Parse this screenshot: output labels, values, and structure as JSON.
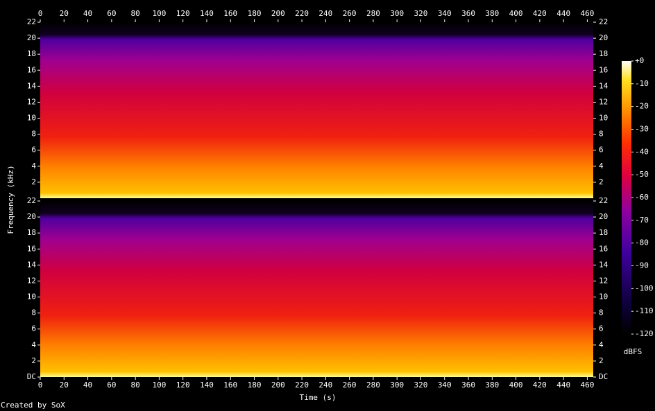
{
  "chart_data": {
    "type": "spectrogram",
    "x_label": "Time (s)",
    "y_label": "Frequency (kHz)",
    "xlim": [
      0,
      465
    ],
    "xticks": [
      0,
      20,
      40,
      60,
      80,
      100,
      120,
      140,
      160,
      180,
      200,
      220,
      240,
      260,
      280,
      300,
      320,
      340,
      360,
      380,
      400,
      420,
      440,
      460
    ],
    "channels": [
      {
        "ylim": [
          0,
          22
        ],
        "yticks": [
          2,
          4,
          6,
          8,
          10,
          12,
          14,
          16,
          18,
          20,
          22
        ]
      },
      {
        "ylim": [
          0,
          22
        ],
        "yticks": [
          {
            "value": 0,
            "label": "DC"
          },
          2,
          4,
          6,
          8,
          10,
          12,
          14,
          16,
          18,
          20,
          22
        ]
      }
    ],
    "colorbar": {
      "label": "dBFS",
      "lim": [
        -120,
        0
      ],
      "ticks": [
        {
          "value": 0,
          "label": "+0"
        },
        -10,
        -20,
        -30,
        -40,
        -50,
        -60,
        -70,
        -80,
        -90,
        -100,
        -110,
        -120
      ]
    }
  },
  "footer": "Created by SoX"
}
